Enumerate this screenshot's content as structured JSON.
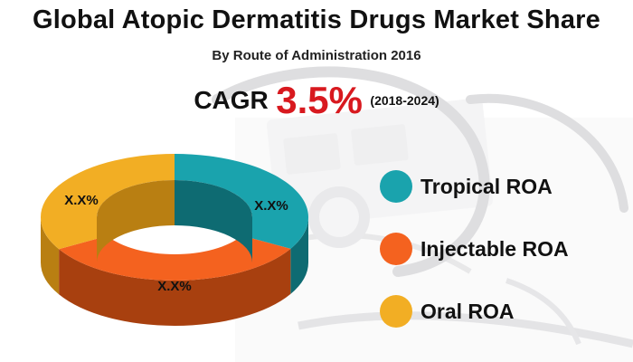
{
  "title": "Global Atopic Dermatitis Drugs Market Share",
  "subtitle": "By Route of Administration 2016",
  "cagr": {
    "label": "CAGR",
    "value": "3.5%",
    "period": "(2018-2024)"
  },
  "colors": {
    "value_accent": "#d8191f",
    "background_image": "stethoscope-photo"
  },
  "chart_data": {
    "type": "pie",
    "style": "3d-donut",
    "title": "Global Atopic Dermatitis Drugs Market Share",
    "subtitle": "By Route of Administration 2016",
    "legend_position": "right",
    "categories": [
      "Tropical ROA",
      "Injectable ROA",
      "Oral ROA"
    ],
    "values": [
      33.3,
      33.3,
      33.4
    ],
    "data_labels": [
      "X.X%",
      "X.X%",
      "X.X%"
    ],
    "colors": [
      "#1aa3ad",
      "#f4621f",
      "#f2ae24"
    ],
    "side_colors": [
      "#0e6b72",
      "#a8400f",
      "#b97f12"
    ]
  }
}
